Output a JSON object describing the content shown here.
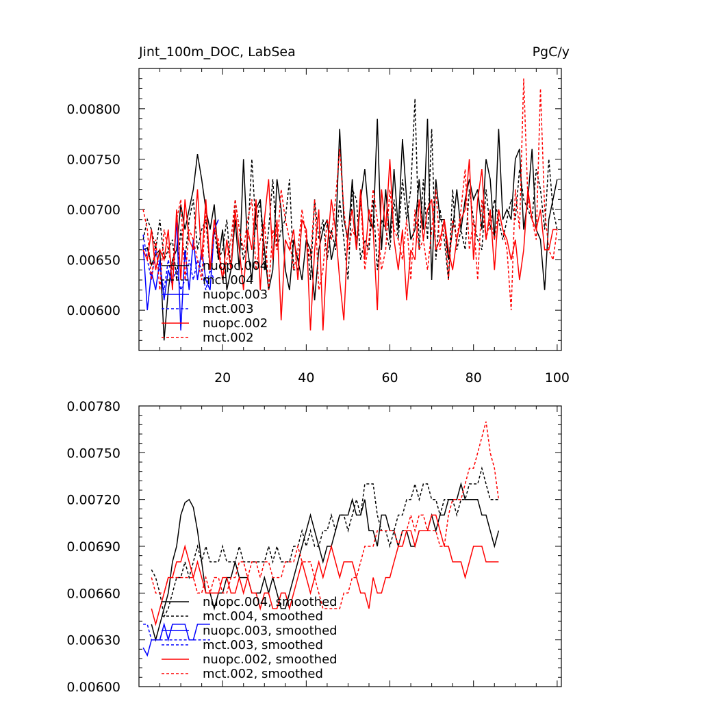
{
  "chart_data": [
    {
      "type": "line",
      "title_left": "Jint_100m_DOC, LabSea",
      "title_right": "PgC/y",
      "xlabel": "",
      "ylabel": "",
      "xlim": [
        0,
        101
      ],
      "ylim": [
        0.0056,
        0.0084
      ],
      "x_ticks": [
        20,
        40,
        60,
        80,
        100
      ],
      "y_ticks": [
        0.006,
        0.0065,
        0.007,
        0.0075,
        0.008
      ],
      "y_tick_labels": [
        "0.00600",
        "0.00650",
        "0.00700",
        "0.00750",
        "0.00800"
      ],
      "legend_position": "lower-left",
      "series": [
        {
          "name": "nuopc.004",
          "color": "#000000",
          "dash": "solid",
          "x_start": 1,
          "values": [
            0.0066,
            0.00662,
            0.00645,
            0.00655,
            0.0066,
            0.0057,
            0.0062,
            0.0065,
            0.0066,
            0.00705,
            0.0068,
            0.007,
            0.0072,
            0.00755,
            0.0073,
            0.007,
            0.0068,
            0.00705,
            0.0065,
            0.0068,
            0.0062,
            0.0064,
            0.0069,
            0.0064,
            0.0075,
            0.0066,
            0.0063,
            0.007,
            0.0071,
            0.0066,
            0.0062,
            0.0064,
            0.0073,
            0.007,
            0.0064,
            0.0062,
            0.0067,
            0.0065,
            0.0063,
            0.0067,
            0.0066,
            0.0061,
            0.0066,
            0.0068,
            0.0069,
            0.0065,
            0.0067,
            0.0078,
            0.0069,
            0.0067,
            0.0073,
            0.0066,
            0.0071,
            0.0074,
            0.0069,
            0.0068,
            0.0079,
            0.0066,
            0.0072,
            0.0067,
            0.0074,
            0.0068,
            0.0077,
            0.0071,
            0.0067,
            0.0068,
            0.0073,
            0.0068,
            0.0079,
            0.0063,
            0.0073,
            0.0069,
            0.0069,
            0.0065,
            0.0068,
            0.0072,
            0.0068,
            0.0071,
            0.0073,
            0.0071,
            0.0072,
            0.0068,
            0.0075,
            0.0073,
            0.0067,
            0.0078,
            0.0069,
            0.007,
            0.0069,
            0.0075,
            0.0076,
            0.0068,
            0.0071,
            0.0076,
            0.0068,
            0.0067,
            0.0062,
            0.0069,
            0.0071,
            0.0073
          ]
        },
        {
          "name": "mct.004",
          "color": "#000000",
          "dash": "dashed",
          "x_start": 1,
          "values": [
            0.0067,
            0.0069,
            0.0068,
            0.0066,
            0.0069,
            0.0065,
            0.0066,
            0.0067,
            0.0063,
            0.0068,
            0.0065,
            0.0069,
            0.0071,
            0.0066,
            0.0068,
            0.0069,
            0.0064,
            0.0068,
            0.0065,
            0.0066,
            0.0069,
            0.0064,
            0.0071,
            0.0068,
            0.0065,
            0.0067,
            0.0075,
            0.0068,
            0.0071,
            0.0064,
            0.0068,
            0.0073,
            0.0066,
            0.0068,
            0.0069,
            0.0073,
            0.0064,
            0.0064,
            0.0069,
            0.0068,
            0.0063,
            0.0071,
            0.0067,
            0.0069,
            0.0065,
            0.0068,
            0.0066,
            0.0071,
            0.0067,
            0.0063,
            0.0072,
            0.0071,
            0.0065,
            0.0067,
            0.0066,
            0.0071,
            0.0064,
            0.0069,
            0.0068,
            0.0066,
            0.0071,
            0.0067,
            0.0073,
            0.0069,
            0.0072,
            0.0081,
            0.0066,
            0.0073,
            0.0067,
            0.0078,
            0.0065,
            0.007,
            0.0067,
            0.0063,
            0.0072,
            0.0066,
            0.0068,
            0.0066,
            0.0072,
            0.0069,
            0.0067,
            0.0066,
            0.0072,
            0.0068,
            0.0071,
            0.0069,
            0.0067,
            0.0069,
            0.0071,
            0.0069,
            0.0074,
            0.0071,
            0.007,
            0.0069,
            0.0074,
            0.0072,
            0.0068,
            0.0075,
            0.007,
            0.0068
          ]
        },
        {
          "name": "nuopc.003",
          "color": "#0000ff",
          "dash": "solid",
          "x_start": 1,
          "values": [
            0.00665,
            0.006,
            0.00638,
            0.0062,
            0.0065,
            0.0061,
            0.0064,
            0.00625,
            0.0069,
            0.0058,
            0.0066,
            0.0062,
            0.0067,
            0.0063,
            0.0066,
            0.0063,
            0.0062,
            0.0068,
            0.0069
          ]
        },
        {
          "name": "mct.003",
          "color": "#0000ff",
          "dash": "dashed",
          "x_start": 1,
          "values": [
            0.00675,
            0.0065,
            0.0063,
            0.0066,
            0.0064,
            0.0062,
            0.0065,
            0.0063,
            0.0064,
            0.0062,
            0.0063,
            0.0065,
            0.0063,
            0.0065,
            0.0064,
            0.0062,
            0.0064,
            0.0063
          ]
        },
        {
          "name": "nuopc.002",
          "color": "#ff0000",
          "dash": "solid",
          "x_start": 1,
          "values": [
            0.0066,
            0.0065,
            0.0068,
            0.0064,
            0.0066,
            0.0065,
            0.0068,
            0.0062,
            0.007,
            0.0063,
            0.0071,
            0.0067,
            0.0066,
            0.0072,
            0.0065,
            0.0071,
            0.0064,
            0.0069,
            0.0066,
            0.0063,
            0.0067,
            0.0064,
            0.007,
            0.0066,
            0.0062,
            0.0068,
            0.0066,
            0.0071,
            0.0062,
            0.0069,
            0.0073,
            0.0065,
            0.0069,
            0.0059,
            0.0067,
            0.0066,
            0.0068,
            0.0063,
            0.0069,
            0.0068,
            0.0058,
            0.0066,
            0.007,
            0.0058,
            0.0066,
            0.0071,
            0.0068,
            0.0063,
            0.0059,
            0.0068,
            0.007,
            0.0066,
            0.0072,
            0.0065,
            0.007,
            0.0068,
            0.006,
            0.0072,
            0.0068,
            0.0075,
            0.0067,
            0.0064,
            0.0068,
            0.0061,
            0.0066,
            0.0065,
            0.0071,
            0.0067,
            0.007,
            0.0071,
            0.0066,
            0.0067,
            0.0069,
            0.0066,
            0.0064,
            0.0067,
            0.0069,
            0.007,
            0.0075,
            0.0065,
            0.0071,
            0.0074,
            0.0067,
            0.007,
            0.0064,
            0.007,
            0.0068,
            0.0067,
            0.0065,
            0.0067,
            0.0063,
            0.0066,
            0.0072,
            0.0069,
            0.0068,
            0.007,
            0.0066,
            0.0066,
            0.0068,
            0.0068
          ]
        },
        {
          "name": "mct.002",
          "color": "#ff0000",
          "dash": "dashed",
          "x_start": 1,
          "values": [
            0.007,
            0.0068,
            0.0063,
            0.0067,
            0.0062,
            0.0068,
            0.0066,
            0.0064,
            0.0069,
            0.0071,
            0.0063,
            0.0068,
            0.0067,
            0.0065,
            0.0063,
            0.007,
            0.0064,
            0.0068,
            0.0067,
            0.0063,
            0.0065,
            0.0067,
            0.0071,
            0.0068,
            0.0066,
            0.0069,
            0.0071,
            0.0064,
            0.0067,
            0.0069,
            0.0062,
            0.0068,
            0.0066,
            0.0072,
            0.0069,
            0.0067,
            0.0064,
            0.0066,
            0.007,
            0.0067,
            0.0065,
            0.0071,
            0.0062,
            0.0064,
            0.0069,
            0.0067,
            0.0071,
            0.0076,
            0.007,
            0.0066,
            0.0068,
            0.0067,
            0.0071,
            0.0064,
            0.0067,
            0.0072,
            0.0069,
            0.0064,
            0.0066,
            0.0072,
            0.0068,
            0.0067,
            0.0065,
            0.0069,
            0.0063,
            0.007,
            0.0066,
            0.0067,
            0.0064,
            0.0068,
            0.0072,
            0.0066,
            0.0069,
            0.0063,
            0.0069,
            0.0067,
            0.007,
            0.0074,
            0.0066,
            0.0069,
            0.0063,
            0.0071,
            0.0067,
            0.0069,
            0.0067,
            0.007,
            0.0068,
            0.0066,
            0.006,
            0.0072,
            0.0068,
            0.0083,
            0.0071,
            0.0069,
            0.0067,
            0.0082,
            0.007,
            0.0066,
            0.0065,
            0.0068
          ]
        }
      ]
    },
    {
      "type": "line",
      "title": "",
      "xlabel": "",
      "ylabel": "",
      "xlim": [
        0,
        101
      ],
      "ylim": [
        0.006,
        0.0078
      ],
      "x_ticks": [
        20,
        40,
        60,
        80,
        100
      ],
      "y_ticks": [
        0.006,
        0.0063,
        0.0066,
        0.0069,
        0.0072,
        0.0075,
        0.0078
      ],
      "y_tick_labels": [
        "0.00600",
        "0.00630",
        "0.00660",
        "0.00690",
        "0.00720",
        "0.00750",
        "0.00780"
      ],
      "legend_position": "lower-left",
      "series": [
        {
          "name": "nuopc.004, smoothed",
          "color": "#000000",
          "dash": "solid",
          "x_start": 3,
          "values": [
            0.0064,
            0.0063,
            0.0064,
            0.0065,
            0.0066,
            0.0068,
            0.0069,
            0.0071,
            0.00718,
            0.0072,
            0.00715,
            0.007,
            0.0068,
            0.0066,
            0.0066,
            0.0065,
            0.0066,
            0.0066,
            0.0067,
            0.0067,
            0.0068,
            0.0067,
            0.0067,
            0.0067,
            0.0066,
            0.0066,
            0.0066,
            0.0067,
            0.0066,
            0.0067,
            0.0066,
            0.0065,
            0.0065,
            0.0066,
            0.0067,
            0.0068,
            0.0069,
            0.007,
            0.0071,
            0.007,
            0.0069,
            0.0068,
            0.0069,
            0.0069,
            0.007,
            0.0071,
            0.0071,
            0.0071,
            0.0072,
            0.0071,
            0.0071,
            0.0072,
            0.007,
            0.007,
            0.0069,
            0.0071,
            0.0071,
            0.007,
            0.007,
            0.0069,
            0.007,
            0.007,
            0.0069,
            0.0069,
            0.007,
            0.007,
            0.007,
            0.0071,
            0.007,
            0.0071,
            0.0071,
            0.0072,
            0.0072,
            0.0072,
            0.0073,
            0.0072,
            0.0072,
            0.0072,
            0.0072,
            0.0071,
            0.0071,
            0.007,
            0.0069,
            0.007
          ]
        },
        {
          "name": "mct.004, smoothed",
          "color": "#000000",
          "dash": "dashed",
          "x_start": 3,
          "values": [
            0.00675,
            0.0067,
            0.0066,
            0.00645,
            0.0065,
            0.0066,
            0.0067,
            0.0067,
            0.0068,
            0.0067,
            0.0068,
            0.0069,
            0.0068,
            0.0069,
            0.0068,
            0.0068,
            0.0068,
            0.0069,
            0.0068,
            0.0068,
            0.0068,
            0.0069,
            0.0068,
            0.0068,
            0.0068,
            0.0068,
            0.0068,
            0.0068,
            0.0069,
            0.0068,
            0.0069,
            0.0068,
            0.0068,
            0.0068,
            0.0069,
            0.0069,
            0.007,
            0.0069,
            0.007,
            0.0069,
            0.0069,
            0.007,
            0.007,
            0.0071,
            0.007,
            0.0071,
            0.0071,
            0.007,
            0.0071,
            0.0072,
            0.0071,
            0.0073,
            0.0073,
            0.0073,
            0.0071,
            0.007,
            0.007,
            0.0069,
            0.007,
            0.0071,
            0.0071,
            0.0072,
            0.0072,
            0.0073,
            0.0072,
            0.0073,
            0.0073,
            0.0072,
            0.0072,
            0.0071,
            0.0072,
            0.0072,
            0.0072,
            0.0071,
            0.0072,
            0.0072,
            0.0073,
            0.0073,
            0.0073,
            0.0074,
            0.0073,
            0.0072,
            0.0072,
            0.0072
          ]
        },
        {
          "name": "nuopc.003, smoothed",
          "color": "#0000ff",
          "dash": "solid",
          "x_start": 1,
          "values": [
            0.00625,
            0.0062,
            0.0063,
            0.0063,
            0.0063,
            0.0064,
            0.0063,
            0.0064,
            0.0064,
            0.0064,
            0.0064,
            0.0063,
            0.0063,
            0.0064,
            0.0064,
            0.0064,
            0.0064
          ]
        },
        {
          "name": "mct.003, smoothed",
          "color": "#0000ff",
          "dash": "dashed",
          "x_start": 1,
          "values": [
            0.0064,
            0.0064,
            0.0063,
            0.0063,
            0.0063,
            0.0063,
            0.0063,
            0.0063,
            0.0063,
            0.0063,
            0.0063,
            0.0063,
            0.0063,
            0.0063,
            0.0063,
            0.0063,
            0.0063
          ]
        },
        {
          "name": "nuopc.002, smoothed",
          "color": "#ff0000",
          "dash": "solid",
          "x_start": 3,
          "values": [
            0.0065,
            0.0064,
            0.0065,
            0.0066,
            0.0067,
            0.0067,
            0.0068,
            0.0068,
            0.0069,
            0.0068,
            0.0067,
            0.0068,
            0.0067,
            0.0066,
            0.0066,
            0.0066,
            0.0066,
            0.0067,
            0.0067,
            0.0066,
            0.0066,
            0.0067,
            0.0066,
            0.0067,
            0.0066,
            0.0066,
            0.0065,
            0.0066,
            0.0066,
            0.0065,
            0.0065,
            0.0066,
            0.0066,
            0.0065,
            0.0066,
            0.0067,
            0.0068,
            0.0067,
            0.0066,
            0.0067,
            0.0068,
            0.0067,
            0.0068,
            0.0069,
            0.0068,
            0.0067,
            0.0068,
            0.0068,
            0.0068,
            0.0067,
            0.0066,
            0.0066,
            0.0065,
            0.0067,
            0.0066,
            0.0066,
            0.0067,
            0.0067,
            0.0068,
            0.0069,
            0.0069,
            0.007,
            0.007,
            0.0069,
            0.007,
            0.007,
            0.007,
            0.0071,
            0.0071,
            0.007,
            0.0069,
            0.0069,
            0.0068,
            0.0068,
            0.0068,
            0.0067,
            0.0068,
            0.0069,
            0.0069,
            0.0069,
            0.0068,
            0.0068,
            0.0068,
            0.0068
          ]
        },
        {
          "name": "mct.002, smoothed",
          "color": "#ff0000",
          "dash": "dashed",
          "x_start": 3,
          "values": [
            0.0067,
            0.0066,
            0.0066,
            0.0066,
            0.0067,
            0.0067,
            0.0067,
            0.0067,
            0.0067,
            0.0067,
            0.0067,
            0.0066,
            0.0066,
            0.0067,
            0.0066,
            0.0067,
            0.0067,
            0.0066,
            0.0066,
            0.0067,
            0.0067,
            0.0068,
            0.0068,
            0.0067,
            0.0068,
            0.0068,
            0.0067,
            0.0068,
            0.0068,
            0.0067,
            0.0067,
            0.0067,
            0.0068,
            0.0068,
            0.0068,
            0.0069,
            0.0068,
            0.0068,
            0.0068,
            0.0067,
            0.0066,
            0.0065,
            0.0065,
            0.0065,
            0.0065,
            0.0065,
            0.0066,
            0.0066,
            0.0067,
            0.0067,
            0.0068,
            0.0069,
            0.0069,
            0.0069,
            0.007,
            0.007,
            0.007,
            0.007,
            0.007,
            0.0069,
            0.007,
            0.007,
            0.0071,
            0.007,
            0.0071,
            0.0071,
            0.007,
            0.007,
            0.007,
            0.0069,
            0.0069,
            0.0071,
            0.0072,
            0.0072,
            0.0072,
            0.0073,
            0.0074,
            0.0074,
            0.0075,
            0.0076,
            0.0077,
            0.0075,
            0.0074,
            0.0072
          ]
        }
      ]
    }
  ]
}
